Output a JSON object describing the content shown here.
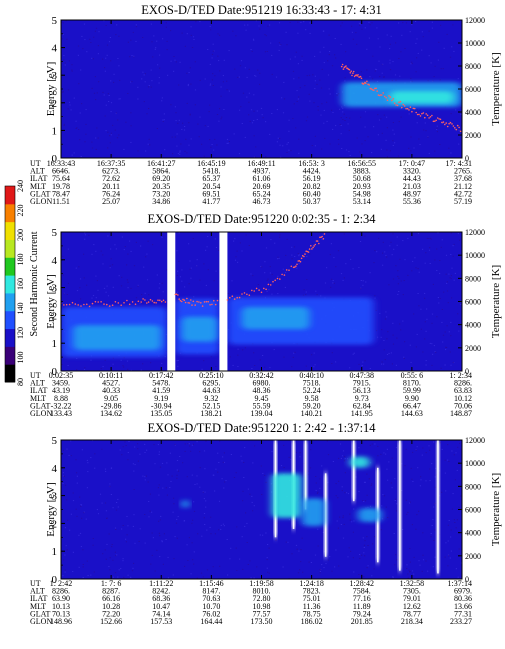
{
  "colorbar": {
    "label": "Second Harmonic Current",
    "ticks": [
      240,
      220,
      200,
      180,
      160,
      140,
      120,
      100,
      80
    ],
    "colors": [
      "#000000",
      "#3a0078",
      "#1a10c8",
      "#2050ff",
      "#20a0f0",
      "#30e8e0",
      "#20c820",
      "#b8e820",
      "#f0e000",
      "#f88000",
      "#e01818"
    ]
  },
  "chart_data": [
    {
      "type": "heatmap",
      "title": "EXOS-D/TED   Date:951219  16:33:43 - 17: 4:31",
      "ylabel": "Energy [eV]",
      "y2label": "Temperature [K]",
      "ylim": [
        0,
        5
      ],
      "y2lim": [
        0,
        12000
      ],
      "yticks": [
        "0",
        "1",
        "2",
        "3",
        "4",
        "5"
      ],
      "y2ticks": [
        "0",
        "2000",
        "4000",
        "6000",
        "8000",
        "10000",
        "12000"
      ],
      "gaps": [],
      "features": [
        {
          "kind": "blob",
          "x0": 0.7,
          "x1": 1.0,
          "ymid": 2.3,
          "height": 0.9,
          "level": 4
        },
        {
          "kind": "blob",
          "x0": 0.82,
          "x1": 0.98,
          "ymid": 2.2,
          "height": 0.45,
          "level": 5
        }
      ],
      "temperature_trace": [
        [
          0.7,
          8000
        ],
        [
          0.73,
          7300
        ],
        [
          0.76,
          6500
        ],
        [
          0.8,
          5500
        ],
        [
          0.85,
          4600
        ],
        [
          0.9,
          3800
        ],
        [
          0.95,
          3100
        ],
        [
          1.0,
          2500
        ]
      ],
      "table": {
        "rows": [
          {
            "name": "UT",
            "values": [
              "16:33:43",
              "16:37:35",
              "16:41:27",
              "16:45:19",
              "16:49:11",
              "16:53: 3",
              "16:56:55",
              "17: 0:47",
              "17: 4:31"
            ]
          },
          {
            "name": "ALT",
            "values": [
              "6646.",
              "6273.",
              "5864.",
              "5418.",
              "4937.",
              "4424.",
              "3883.",
              "3320.",
              "2765."
            ]
          },
          {
            "name": "ILAT",
            "values": [
              "75.64",
              "72.62",
              "69.20",
              "65.37",
              "61.06",
              "56.19",
              "50.68",
              "44.43",
              "37.68"
            ]
          },
          {
            "name": "MLT",
            "values": [
              "19.78",
              "20.11",
              "20.35",
              "20.54",
              "20.69",
              "20.82",
              "20.93",
              "21.03",
              "21.12"
            ]
          },
          {
            "name": "GLAT",
            "values": [
              "78.47",
              "76.24",
              "73.20",
              "69.51",
              "65.24",
              "60.40",
              "54.98",
              "48.97",
              "42.72"
            ]
          },
          {
            "name": "GLON",
            "values": [
              "11.51",
              "25.07",
              "34.86",
              "41.77",
              "46.73",
              "50.37",
              "53.14",
              "55.36",
              "57.19"
            ]
          }
        ]
      }
    },
    {
      "type": "heatmap",
      "title": "EXOS-D/TED   Date:951220   0:02:35 -  1: 2:34",
      "ylabel": "Energy [eV]",
      "y2label": "Temperature [K]",
      "ylim": [
        0,
        5
      ],
      "y2lim": [
        0,
        12000
      ],
      "yticks": [
        "0",
        "1",
        "2",
        "3",
        "4",
        "5"
      ],
      "y2ticks": [
        "0",
        "2000",
        "4000",
        "6000",
        "8000",
        "10000",
        "12000"
      ],
      "gaps": [
        [
          0.265,
          0.285
        ],
        [
          0.395,
          0.415
        ]
      ],
      "features": [
        {
          "kind": "blob",
          "x0": 0.0,
          "x1": 0.265,
          "ymid": 1.4,
          "height": 1.8,
          "level": 3
        },
        {
          "kind": "blob",
          "x0": 0.03,
          "x1": 0.25,
          "ymid": 1.2,
          "height": 0.9,
          "level": 4
        },
        {
          "kind": "blob",
          "x0": 0.285,
          "x1": 0.395,
          "ymid": 1.6,
          "height": 2.0,
          "level": 3
        },
        {
          "kind": "blob",
          "x0": 0.3,
          "x1": 0.39,
          "ymid": 1.5,
          "height": 0.9,
          "level": 4
        },
        {
          "kind": "blob",
          "x0": 0.415,
          "x1": 0.78,
          "ymid": 1.8,
          "height": 1.7,
          "level": 3
        },
        {
          "kind": "blob",
          "x0": 0.45,
          "x1": 0.62,
          "ymid": 1.9,
          "height": 0.8,
          "level": 4
        }
      ],
      "temperature_trace": [
        [
          0.0,
          5900
        ],
        [
          0.1,
          5800
        ],
        [
          0.2,
          6000
        ],
        [
          0.265,
          6000
        ],
        [
          0.285,
          6500
        ],
        [
          0.33,
          5800
        ],
        [
          0.395,
          5900
        ],
        [
          0.415,
          6300
        ],
        [
          0.5,
          7000
        ],
        [
          0.58,
          9000
        ],
        [
          0.62,
          10500
        ],
        [
          0.66,
          11800
        ]
      ],
      "table": {
        "rows": [
          {
            "name": "UT",
            "values": [
              "0:02:35",
              "0:10:11",
              "0:17:42",
              "0:25:10",
              "0:32:42",
              "0:40:10",
              "0:47:38",
              "0:55: 6",
              "1: 2:34"
            ]
          },
          {
            "name": "ALT",
            "values": [
              "3459.",
              "4527.",
              "5478.",
              "6295.",
              "6980.",
              "7518.",
              "7915.",
              "8170.",
              "8286."
            ]
          },
          {
            "name": "ILAT",
            "values": [
              "43.19",
              "40.33",
              "41.59",
              "44.63",
              "48.36",
              "52.24",
              "56.13",
              "59.99",
              "63.83"
            ]
          },
          {
            "name": "MLT",
            "values": [
              "8.88",
              "9.05",
              "9.19",
              "9.32",
              "9.45",
              "9.58",
              "9.73",
              "9.90",
              "10.12"
            ]
          },
          {
            "name": "GLAT",
            "values": [
              "-32.22",
              "-29.86",
              "-30.94",
              "52.15",
              "55.59",
              "59.20",
              "62.84",
              "66.47",
              "70.06"
            ]
          },
          {
            "name": "GLON",
            "values": [
              "133.43",
              "134.62",
              "135.05",
              "138.21",
              "139.04",
              "140.21",
              "141.95",
              "144.63",
              "148.87"
            ]
          }
        ]
      }
    },
    {
      "type": "heatmap",
      "title": "EXOS-D/TED   Date:951220   1: 2:42 -  1:37:14",
      "ylabel": "Energy [eV]",
      "y2label": "Temperature [K]",
      "ylim": [
        0,
        5
      ],
      "y2lim": [
        0,
        12000
      ],
      "yticks": [
        "0",
        "1",
        "2",
        "3",
        "4",
        "5"
      ],
      "y2ticks": [
        "0",
        "2000",
        "4000",
        "6000",
        "8000",
        "10000",
        "12000"
      ],
      "gaps": [],
      "features": [
        {
          "kind": "spike",
          "x": 0.535,
          "y0": 1.5,
          "y1": 5.0,
          "level": 10
        },
        {
          "kind": "spike",
          "x": 0.58,
          "y0": 1.8,
          "y1": 5.0,
          "level": 10
        },
        {
          "kind": "spike",
          "x": 0.61,
          "y0": 2.5,
          "y1": 5.0,
          "level": 10
        },
        {
          "kind": "spike",
          "x": 0.66,
          "y0": 0.8,
          "y1": 3.8,
          "level": 10
        },
        {
          "kind": "spike",
          "x": 0.73,
          "y0": 2.8,
          "y1": 5.0,
          "level": 10
        },
        {
          "kind": "spike",
          "x": 0.79,
          "y0": 0.6,
          "y1": 4.0,
          "level": 10
        },
        {
          "kind": "spike",
          "x": 0.845,
          "y0": 0.3,
          "y1": 5.0,
          "level": 10
        },
        {
          "kind": "spike",
          "x": 0.94,
          "y0": 0.2,
          "y1": 5.0,
          "level": 10
        },
        {
          "kind": "blob",
          "x0": 0.525,
          "x1": 0.6,
          "ymid": 3.0,
          "height": 1.6,
          "level": 5
        },
        {
          "kind": "blob",
          "x0": 0.6,
          "x1": 0.66,
          "ymid": 2.4,
          "height": 1.0,
          "level": 4
        },
        {
          "kind": "blob",
          "x0": 0.72,
          "x1": 0.77,
          "ymid": 4.2,
          "height": 0.4,
          "level": 5
        },
        {
          "kind": "blob",
          "x0": 0.74,
          "x1": 0.8,
          "ymid": 2.3,
          "height": 0.5,
          "level": 4
        },
        {
          "kind": "blob",
          "x0": 0.3,
          "x1": 0.32,
          "ymid": 2.7,
          "height": 0.3,
          "level": 4
        }
      ],
      "temperature_trace": [],
      "table": {
        "rows": [
          {
            "name": "UT",
            "values": [
              "1: 2:42",
              "1: 7: 6",
              "1:11:22",
              "1:15:46",
              "1:19:58",
              "1:24:18",
              "1:28:42",
              "1:32:58",
              "1:37:14"
            ]
          },
          {
            "name": "ALT",
            "values": [
              "8286.",
              "8287.",
              "8242.",
              "8147.",
              "8010.",
              "7823.",
              "7584.",
              "7305.",
              "6979."
            ]
          },
          {
            "name": "ILAT",
            "values": [
              "63.90",
              "66.16",
              "68.36",
              "70.63",
              "72.80",
              "75.01",
              "77.16",
              "79.01",
              "80.36"
            ]
          },
          {
            "name": "MLT",
            "values": [
              "10.13",
              "10.28",
              "10.47",
              "10.70",
              "10.98",
              "11.36",
              "11.89",
              "12.62",
              "13.66"
            ]
          },
          {
            "name": "GLAT",
            "values": [
              "70.13",
              "72.20",
              "74.14",
              "76.02",
              "77.57",
              "78.75",
              "79.24",
              "78.77",
              "77.31"
            ]
          },
          {
            "name": "GLON",
            "values": [
              "148.96",
              "152.66",
              "157.53",
              "164.44",
              "173.50",
              "186.02",
              "201.85",
              "218.34",
              "233.27"
            ]
          }
        ]
      }
    }
  ]
}
